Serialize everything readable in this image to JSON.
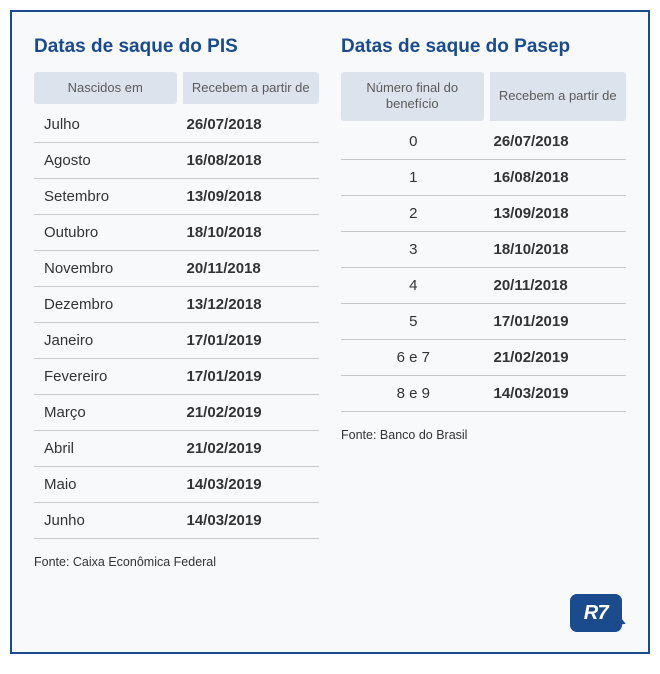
{
  "colors": {
    "accent": "#1a4b8c",
    "panel_bg": "#f7f9fb",
    "header_bg": "#dde3ec",
    "header_text": "#5a5a5a",
    "row_border": "#c9c9c9",
    "text": "#333333"
  },
  "typography": {
    "title_fontsize_pt": 14,
    "title_weight": 700,
    "header_fontsize_pt": 10,
    "cell_fontsize_pt": 11,
    "date_weight": 700,
    "source_fontsize_pt": 9
  },
  "pis": {
    "title": "Datas de saque do PIS",
    "table": {
      "type": "table",
      "columns": [
        "Nascidos\nem",
        "Recebem\na partir de"
      ],
      "col_align": [
        "left",
        "left"
      ],
      "rows": [
        [
          "Julho",
          "26/07/2018"
        ],
        [
          "Agosto",
          "16/08/2018"
        ],
        [
          "Setembro",
          "13/09/2018"
        ],
        [
          "Outubro",
          "18/10/2018"
        ],
        [
          "Novembro",
          "20/11/2018"
        ],
        [
          "Dezembro",
          "13/12/2018"
        ],
        [
          "Janeiro",
          "17/01/2019"
        ],
        [
          "Fevereiro",
          "17/01/2019"
        ],
        [
          "Março",
          "21/02/2019"
        ],
        [
          "Abril",
          "21/02/2019"
        ],
        [
          "Maio",
          "14/03/2019"
        ],
        [
          "Junho",
          "14/03/2019"
        ]
      ]
    },
    "source": "Fonte: Caixa Econômica Federal"
  },
  "pasep": {
    "title": "Datas de saque do Pasep",
    "table": {
      "type": "table",
      "columns": [
        "Número final\ndo benefício",
        "Recebem\na partir de"
      ],
      "col_align": [
        "center",
        "left"
      ],
      "rows": [
        [
          "0",
          "26/07/2018"
        ],
        [
          "1",
          "16/08/2018"
        ],
        [
          "2",
          "13/09/2018"
        ],
        [
          "3",
          "18/10/2018"
        ],
        [
          "4",
          "20/11/2018"
        ],
        [
          "5",
          "17/01/2019"
        ],
        [
          "6 e 7",
          "21/02/2019"
        ],
        [
          "8 e 9",
          "14/03/2019"
        ]
      ]
    },
    "source": "Fonte: Banco do Brasil"
  },
  "logo": {
    "text": "R7",
    "bg": "#1a4b8c",
    "text_color": "#ffffff"
  }
}
